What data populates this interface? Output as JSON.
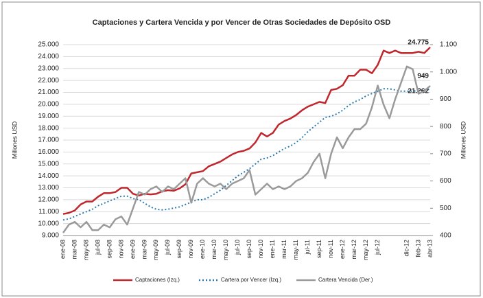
{
  "chart_data": {
    "type": "line",
    "title": "Captaciones y Cartera Vencida y por Vencer de Otras Sociedades de Depósito OSD",
    "ylabel": "Millones USD",
    "y2label": "Millones USD",
    "categories": [
      "ene-08",
      null,
      "mar-08",
      null,
      "may-08",
      null,
      "jul-08",
      null,
      "sep-08",
      null,
      "nov-08",
      null,
      "ene-09",
      null,
      "mar-09",
      null,
      "may-09",
      null,
      "jul-09",
      null,
      "sep-09",
      null,
      "nov-09",
      null,
      "ene-10",
      null,
      "mar-10",
      null,
      "may-10",
      null,
      "jul-10",
      null,
      "sep-10",
      null,
      "nov-10",
      null,
      "ene-11",
      null,
      "mar-11",
      null,
      "may-11",
      null,
      "jul-11",
      null,
      "sep-11",
      null,
      "nov-11",
      null,
      "ene-12",
      null,
      "mar-12",
      null,
      "may-12",
      null,
      "jul-12",
      null,
      null,
      null,
      null,
      "dic-12",
      null,
      "feb-13",
      null,
      "abr-13"
    ],
    "series": [
      {
        "name": "Captaciones (Izq.)",
        "color": "#c0272d",
        "style": "solid",
        "axis": "y",
        "values": [
          10800,
          10900,
          11100,
          11600,
          11850,
          11850,
          12250,
          12550,
          12550,
          12650,
          13000,
          13000,
          12500,
          12350,
          12500,
          12450,
          12500,
          12700,
          12800,
          12750,
          12950,
          13300,
          14200,
          14300,
          14400,
          14800,
          15000,
          15200,
          15500,
          15800,
          16000,
          16100,
          16300,
          16800,
          17600,
          17300,
          17600,
          18300,
          18600,
          18800,
          19100,
          19500,
          19800,
          20000,
          20200,
          20100,
          21200,
          21300,
          21600,
          22400,
          22400,
          22900,
          22900,
          22600,
          23300,
          24500,
          24300,
          24500,
          24300,
          24300,
          24300,
          24400,
          24300,
          24775
        ],
        "value_labels": [
          null,
          null,
          null,
          null,
          null,
          null,
          null,
          null,
          null,
          null,
          null,
          null,
          null,
          null,
          null,
          null,
          null,
          null,
          null,
          null,
          null,
          null,
          null,
          null,
          null,
          null,
          null,
          null,
          null,
          null,
          null,
          null,
          null,
          null,
          null,
          null,
          null,
          null,
          null,
          null,
          null,
          null,
          null,
          null,
          null,
          null,
          null,
          null,
          null,
          null,
          null,
          null,
          null,
          null,
          null,
          null,
          null,
          null,
          null,
          null,
          null,
          null,
          null,
          "24.775"
        ]
      },
      {
        "name": "Cartera por Vencer (Izq.)",
        "color": "#2a7ab0",
        "style": "dotted",
        "axis": "y",
        "values": [
          10300,
          10400,
          10600,
          10800,
          11000,
          11200,
          11500,
          11700,
          11900,
          12100,
          12300,
          12300,
          12100,
          12000,
          11700,
          11400,
          11200,
          11150,
          11200,
          11300,
          11400,
          11600,
          11800,
          12000,
          12000,
          12200,
          12500,
          12800,
          13200,
          13600,
          14000,
          14300,
          14600,
          15000,
          15400,
          15500,
          15700,
          16000,
          16300,
          16500,
          16800,
          17200,
          17700,
          18100,
          18500,
          18900,
          19000,
          19200,
          19500,
          19900,
          20200,
          20400,
          20700,
          20900,
          21100,
          21300,
          21300,
          21200,
          21100,
          21100,
          21100,
          21150,
          21200,
          21262
        ],
        "value_labels": [
          null,
          null,
          null,
          null,
          null,
          null,
          null,
          null,
          null,
          null,
          null,
          null,
          null,
          null,
          null,
          null,
          null,
          null,
          null,
          null,
          null,
          null,
          null,
          null,
          null,
          null,
          null,
          null,
          null,
          null,
          null,
          null,
          null,
          null,
          null,
          null,
          null,
          null,
          null,
          null,
          null,
          null,
          null,
          null,
          null,
          null,
          null,
          null,
          null,
          null,
          null,
          null,
          null,
          null,
          null,
          null,
          null,
          null,
          null,
          null,
          null,
          null,
          null,
          "21.262"
        ]
      },
      {
        "name": "Cartera Vencida (Der.)",
        "color": "#9a9a9a",
        "style": "solid",
        "axis": "y2",
        "values": [
          410,
          440,
          450,
          430,
          450,
          420,
          420,
          440,
          430,
          460,
          470,
          440,
          500,
          560,
          550,
          570,
          580,
          560,
          580,
          570,
          590,
          610,
          520,
          590,
          610,
          590,
          580,
          590,
          570,
          590,
          600,
          610,
          640,
          550,
          570,
          590,
          570,
          580,
          570,
          580,
          600,
          610,
          630,
          670,
          700,
          610,
          700,
          760,
          720,
          760,
          790,
          790,
          810,
          870,
          950,
          880,
          830,
          900,
          960,
          1020,
          1010,
          920,
          930,
          949
        ],
        "value_labels": [
          null,
          null,
          null,
          null,
          null,
          null,
          null,
          null,
          null,
          null,
          null,
          null,
          null,
          null,
          null,
          null,
          null,
          null,
          null,
          null,
          null,
          null,
          null,
          null,
          null,
          null,
          null,
          null,
          null,
          null,
          null,
          null,
          null,
          null,
          null,
          null,
          null,
          null,
          null,
          null,
          null,
          null,
          null,
          null,
          null,
          null,
          null,
          null,
          null,
          null,
          null,
          null,
          null,
          null,
          null,
          null,
          null,
          null,
          null,
          null,
          null,
          null,
          null,
          "949"
        ]
      }
    ],
    "ylim": [
      9000,
      25000
    ],
    "yticks": [
      {
        "value": 9000,
        "label": "9.000"
      },
      {
        "value": 10000,
        "label": "10.000"
      },
      {
        "value": 11000,
        "label": "11.000"
      },
      {
        "value": 12000,
        "label": "12.000"
      },
      {
        "value": 13000,
        "label": "13.000"
      },
      {
        "value": 14000,
        "label": "14.000"
      },
      {
        "value": 15000,
        "label": "15.000"
      },
      {
        "value": 16000,
        "label": "16.000"
      },
      {
        "value": 17000,
        "label": "17.000"
      },
      {
        "value": 18000,
        "label": "18.000"
      },
      {
        "value": 19000,
        "label": "19.000"
      },
      {
        "value": 20000,
        "label": "20.000"
      },
      {
        "value": 21000,
        "label": "21.000"
      },
      {
        "value": 22000,
        "label": "22.000"
      },
      {
        "value": 23000,
        "label": "23.000"
      },
      {
        "value": 24000,
        "label": "24.000"
      },
      {
        "value": 25000,
        "label": "25.000"
      }
    ],
    "y2lim": [
      400,
      1100
    ],
    "y2ticks": [
      400,
      500,
      600,
      700,
      800,
      900,
      {
        "value": 1000,
        "label": "1.000"
      },
      {
        "value": 1100,
        "label": "1.100"
      }
    ],
    "grid": true,
    "legend": "bottom"
  }
}
